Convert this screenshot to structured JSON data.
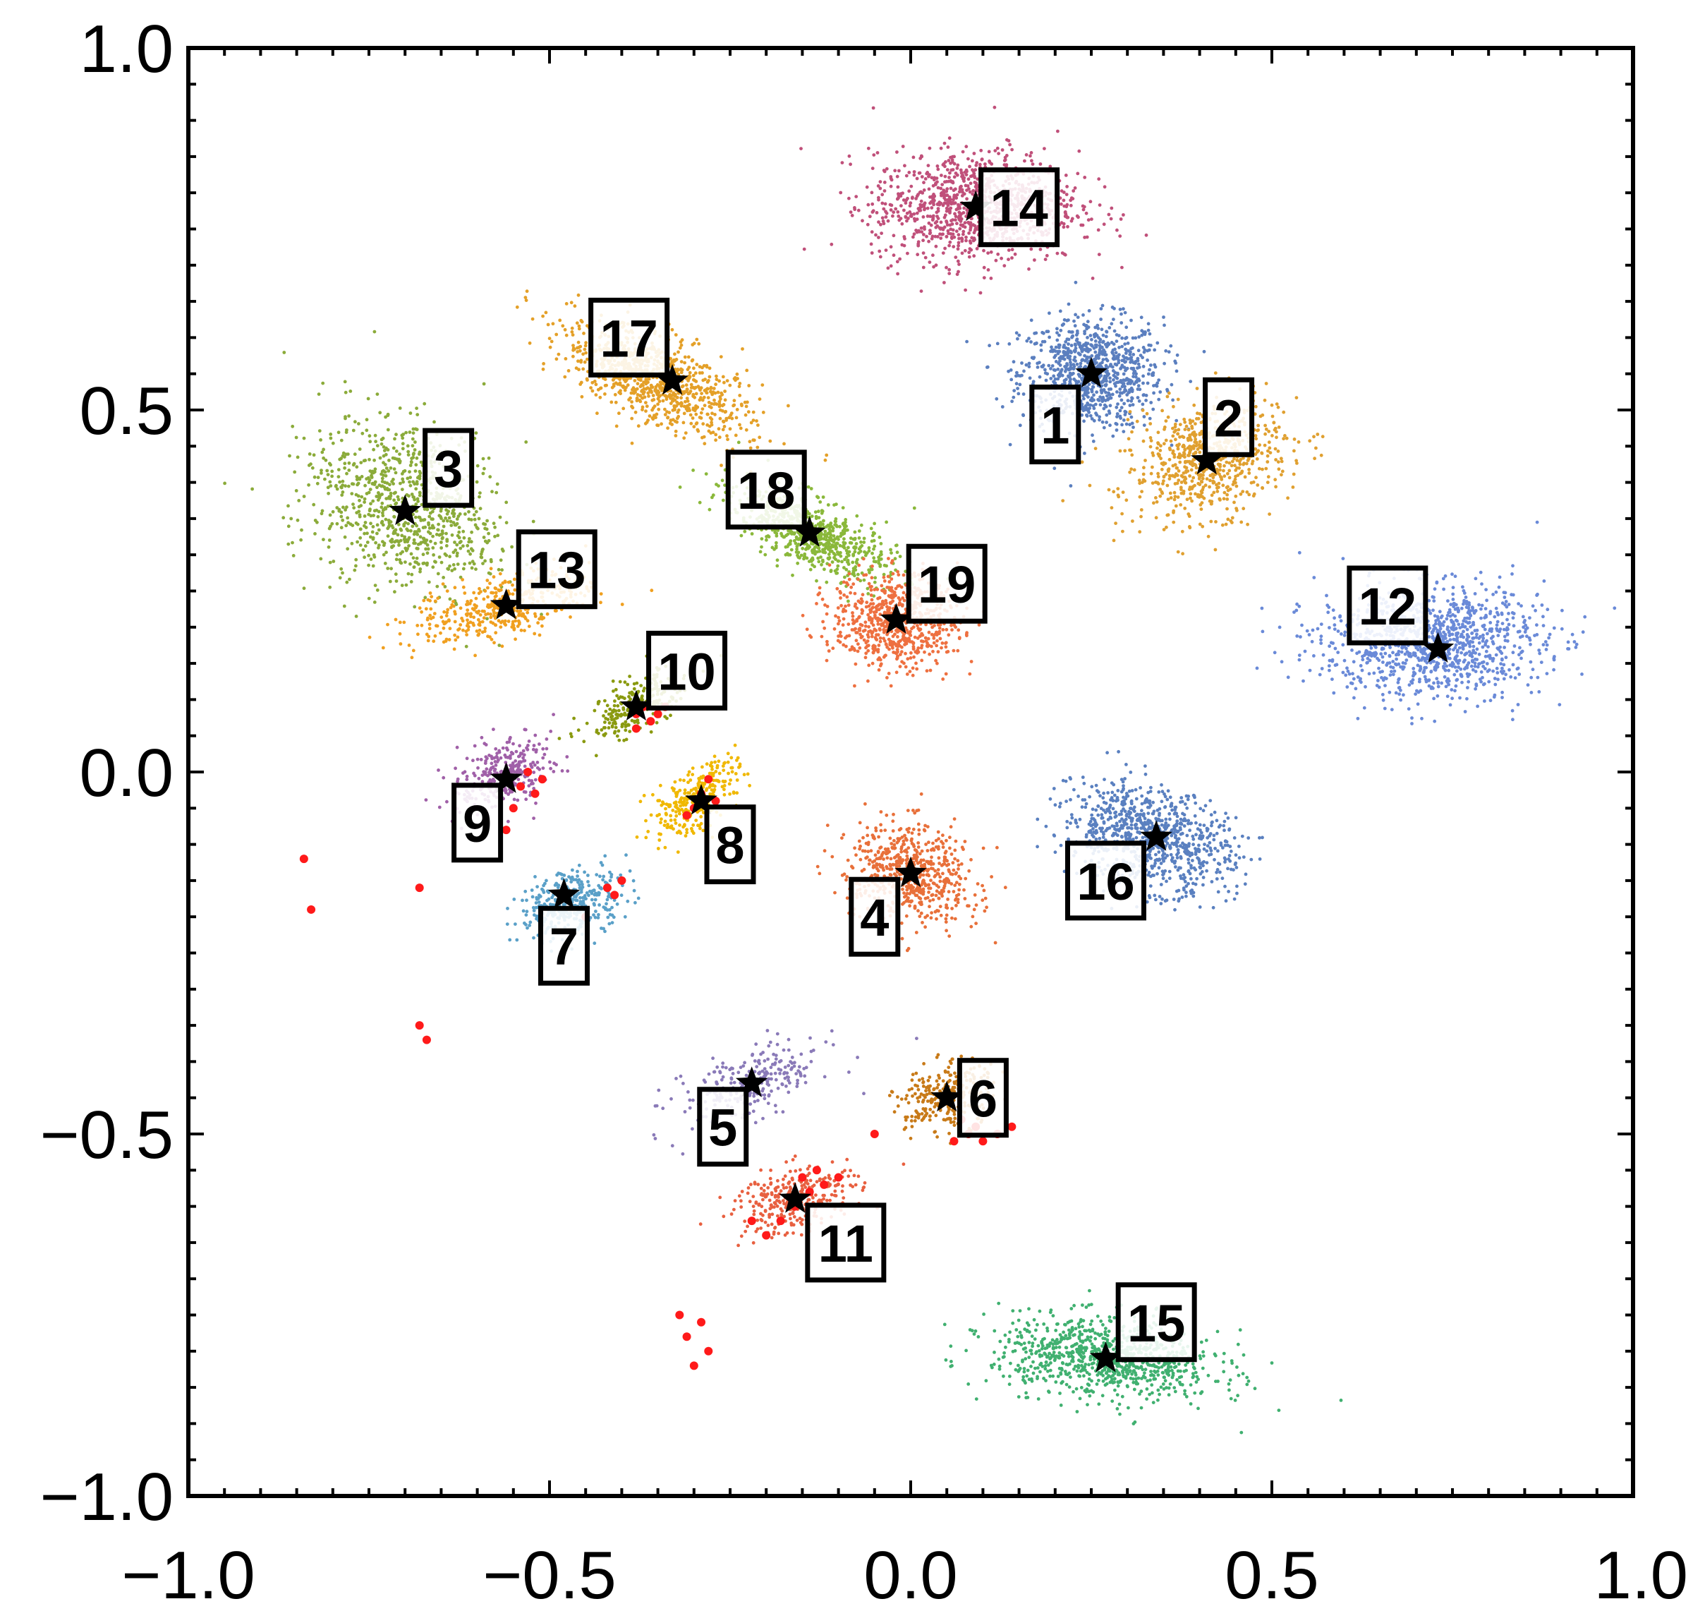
{
  "chart_data": {
    "type": "scatter",
    "title": "",
    "xlabel": "",
    "ylabel": "",
    "xlim": [
      -1.0,
      1.0
    ],
    "ylim": [
      -1.0,
      1.0
    ],
    "grid": false,
    "legend": "none",
    "x_ticks": [
      {
        "value": -1.0,
        "label": "−1.0"
      },
      {
        "value": -0.5,
        "label": "−0.5"
      },
      {
        "value": 0.0,
        "label": "0.0"
      },
      {
        "value": 0.5,
        "label": "0.5"
      },
      {
        "value": 1.0,
        "label": "1.0"
      }
    ],
    "y_ticks": [
      {
        "value": -1.0,
        "label": "−1.0"
      },
      {
        "value": -0.5,
        "label": "−0.5"
      },
      {
        "value": 0.0,
        "label": "0.0"
      },
      {
        "value": 0.5,
        "label": "0.5"
      },
      {
        "value": 1.0,
        "label": "1.0"
      }
    ],
    "clusters": [
      {
        "label": "1",
        "color": "#5b7fbf",
        "center": [
          0.25,
          0.55
        ],
        "spread": [
          0.09,
          0.07
        ],
        "tilt": 0.0,
        "points": 900,
        "label_pos": [
          0.2,
          0.48
        ]
      },
      {
        "label": "2",
        "color": "#e0a030",
        "center": [
          0.41,
          0.43
        ],
        "spread": [
          0.1,
          0.07
        ],
        "tilt": 0.3,
        "points": 700,
        "label_pos": [
          0.44,
          0.49
        ]
      },
      {
        "label": "3",
        "color": "#8bab3a",
        "center": [
          -0.7,
          0.37
        ],
        "spread": [
          0.13,
          0.1
        ],
        "tilt": -0.45,
        "points": 900,
        "label_pos": [
          -0.64,
          0.42
        ]
      },
      {
        "label": "4",
        "color": "#e8703a",
        "center": [
          0.0,
          -0.14
        ],
        "spread": [
          0.08,
          0.06
        ],
        "tilt": -0.3,
        "points": 600,
        "label_pos": [
          -0.05,
          -0.2
        ]
      },
      {
        "label": "5",
        "color": "#8a7ab8",
        "center": [
          -0.22,
          -0.43
        ],
        "spread": [
          0.1,
          0.04
        ],
        "tilt": 0.35,
        "points": 250,
        "label_pos": [
          -0.26,
          -0.49
        ]
      },
      {
        "label": "6",
        "color": "#c87a18",
        "center": [
          0.05,
          -0.45
        ],
        "spread": [
          0.06,
          0.04
        ],
        "tilt": 0.3,
        "points": 300,
        "label_pos": [
          0.1,
          -0.45
        ]
      },
      {
        "label": "7",
        "color": "#5aa0c8",
        "center": [
          -0.47,
          -0.18
        ],
        "spread": [
          0.07,
          0.04
        ],
        "tilt": 0.4,
        "points": 350,
        "label_pos": [
          -0.48,
          -0.24
        ]
      },
      {
        "label": "8",
        "color": "#f0b800",
        "center": [
          -0.3,
          -0.04
        ],
        "spread": [
          0.07,
          0.03
        ],
        "tilt": 0.7,
        "points": 300,
        "label_pos": [
          -0.25,
          -0.1
        ]
      },
      {
        "label": "9",
        "color": "#a060a8",
        "center": [
          -0.56,
          0.0
        ],
        "spread": [
          0.07,
          0.04
        ],
        "tilt": 0.5,
        "points": 300,
        "label_pos": [
          -0.6,
          -0.07
        ]
      },
      {
        "label": "10",
        "color": "#8a9a10",
        "center": [
          -0.38,
          0.09
        ],
        "spread": [
          0.07,
          0.03
        ],
        "tilt": 0.5,
        "points": 250,
        "label_pos": [
          -0.31,
          0.14
        ]
      },
      {
        "label": "11",
        "color": "#e86040",
        "center": [
          -0.16,
          -0.59
        ],
        "spread": [
          0.08,
          0.04
        ],
        "tilt": 0.3,
        "points": 300,
        "label_pos": [
          -0.09,
          -0.65
        ]
      },
      {
        "label": "12",
        "color": "#6a8ad8",
        "center": [
          0.72,
          0.18
        ],
        "spread": [
          0.14,
          0.07
        ],
        "tilt": 0.0,
        "points": 1100,
        "label_pos": [
          0.66,
          0.23
        ]
      },
      {
        "label": "13",
        "color": "#f0a020",
        "center": [
          -0.56,
          0.23
        ],
        "spread": [
          0.12,
          0.04
        ],
        "tilt": 0.25,
        "points": 400,
        "label_pos": [
          -0.49,
          0.28
        ]
      },
      {
        "label": "14",
        "color": "#c0507a",
        "center": [
          0.09,
          0.78
        ],
        "spread": [
          0.13,
          0.07
        ],
        "tilt": 0.0,
        "points": 1100,
        "label_pos": [
          0.15,
          0.78
        ]
      },
      {
        "label": "15",
        "color": "#40b070",
        "center": [
          0.27,
          -0.81
        ],
        "spread": [
          0.14,
          0.05
        ],
        "tilt": -0.1,
        "points": 900,
        "label_pos": [
          0.34,
          -0.76
        ]
      },
      {
        "label": "16",
        "color": "#5a80c0",
        "center": [
          0.33,
          -0.09
        ],
        "spread": [
          0.11,
          0.06
        ],
        "tilt": -0.3,
        "points": 900,
        "label_pos": [
          0.27,
          -0.15
        ]
      },
      {
        "label": "17",
        "color": "#e4a028",
        "center": [
          -0.35,
          0.54
        ],
        "spread": [
          0.13,
          0.05
        ],
        "tilt": -0.45,
        "points": 900,
        "label_pos": [
          -0.39,
          0.6
        ]
      },
      {
        "label": "18",
        "color": "#8ab83a",
        "center": [
          -0.14,
          0.33
        ],
        "spread": [
          0.11,
          0.04
        ],
        "tilt": -0.45,
        "points": 700,
        "label_pos": [
          -0.2,
          0.39
        ]
      },
      {
        "label": "19",
        "color": "#ee7040",
        "center": [
          -0.02,
          0.21
        ],
        "spread": [
          0.08,
          0.06
        ],
        "tilt": 0.0,
        "points": 700,
        "label_pos": [
          0.05,
          0.26
        ]
      }
    ],
    "red_points": [
      [
        -0.38,
        0.08
      ],
      [
        -0.37,
        0.09
      ],
      [
        -0.36,
        0.07
      ],
      [
        -0.35,
        0.08
      ],
      [
        -0.34,
        0.09
      ],
      [
        -0.38,
        0.06
      ],
      [
        -0.54,
        -0.02
      ],
      [
        -0.53,
        0.0
      ],
      [
        -0.52,
        -0.03
      ],
      [
        -0.51,
        -0.01
      ],
      [
        -0.55,
        -0.05
      ],
      [
        -0.56,
        -0.08
      ],
      [
        -0.29,
        -0.03
      ],
      [
        -0.28,
        -0.01
      ],
      [
        -0.27,
        -0.04
      ],
      [
        -0.3,
        -0.05
      ],
      [
        -0.31,
        -0.06
      ],
      [
        -0.4,
        -0.15
      ],
      [
        -0.41,
        -0.17
      ],
      [
        -0.42,
        -0.16
      ],
      [
        -0.45,
        -0.2
      ],
      [
        -0.84,
        -0.12
      ],
      [
        -0.83,
        -0.19
      ],
      [
        -0.68,
        -0.16
      ],
      [
        -0.68,
        -0.35
      ],
      [
        -0.67,
        -0.37
      ],
      [
        0.07,
        -0.48
      ],
      [
        0.08,
        -0.5
      ],
      [
        0.09,
        -0.49
      ],
      [
        0.1,
        -0.51
      ],
      [
        0.12,
        -0.5
      ],
      [
        0.14,
        -0.49
      ],
      [
        0.06,
        -0.51
      ],
      [
        -0.15,
        -0.56
      ],
      [
        -0.14,
        -0.58
      ],
      [
        -0.13,
        -0.55
      ],
      [
        -0.12,
        -0.57
      ],
      [
        -0.16,
        -0.6
      ],
      [
        -0.18,
        -0.62
      ],
      [
        -0.2,
        -0.64
      ],
      [
        -0.22,
        -0.62
      ],
      [
        -0.1,
        -0.56
      ],
      [
        -0.05,
        -0.5
      ],
      [
        -0.32,
        -0.75
      ],
      [
        -0.31,
        -0.78
      ],
      [
        -0.3,
        -0.82
      ],
      [
        -0.29,
        -0.76
      ],
      [
        -0.28,
        -0.8
      ]
    ],
    "stars": [
      [
        0.25,
        0.55
      ],
      [
        0.41,
        0.43
      ],
      [
        -0.7,
        0.36
      ],
      [
        0.0,
        -0.14
      ],
      [
        -0.22,
        -0.43
      ],
      [
        0.05,
        -0.45
      ],
      [
        -0.48,
        -0.17
      ],
      [
        -0.29,
        -0.04
      ],
      [
        -0.56,
        -0.01
      ],
      [
        -0.38,
        0.09
      ],
      [
        -0.16,
        -0.59
      ],
      [
        0.73,
        0.17
      ],
      [
        -0.56,
        0.23
      ],
      [
        0.09,
        0.78
      ],
      [
        0.27,
        -0.81
      ],
      [
        0.34,
        -0.09
      ],
      [
        -0.33,
        0.54
      ],
      [
        -0.14,
        0.33
      ],
      [
        -0.02,
        0.21
      ]
    ]
  }
}
